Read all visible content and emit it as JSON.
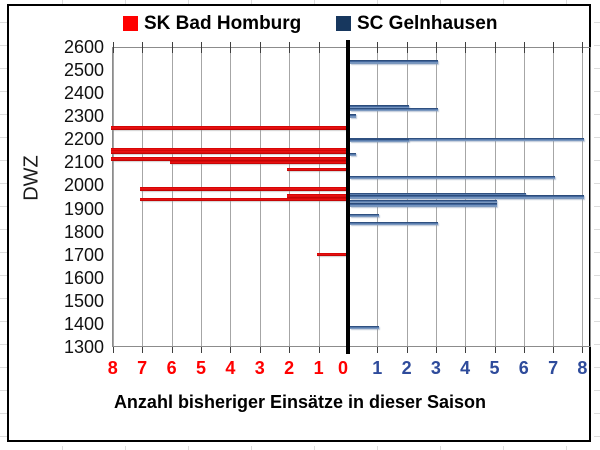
{
  "chart_data": {
    "type": "bar",
    "variant": "diverging-horizontal",
    "title": "",
    "xlabel": "Anzahl bisheriger Einsätze in dieser Saison",
    "ylabel": "DWZ",
    "grid": true,
    "legend_position": "top",
    "ylim": [
      1300,
      2600
    ],
    "xlim_abs": [
      0,
      8
    ],
    "y_ticks": [
      2600,
      2500,
      2400,
      2300,
      2200,
      2100,
      2000,
      1900,
      1800,
      1700,
      1600,
      1500,
      1400,
      1300
    ],
    "x_ticks_left": [
      "8",
      "7",
      "6",
      "5",
      "4",
      "3",
      "2",
      "1",
      "0"
    ],
    "x_ticks_right": [
      "1",
      "2",
      "3",
      "4",
      "5",
      "6",
      "7",
      "8"
    ],
    "series": [
      {
        "name": "SK Bad Homburg",
        "side": "left",
        "color": "#FF0000",
        "tick_color": "#FF0000",
        "points": [
          {
            "dwz": 2250,
            "einsaetze": 8
          },
          {
            "dwz": 2155,
            "einsaetze": 8
          },
          {
            "dwz": 2145,
            "einsaetze": 8
          },
          {
            "dwz": 2115,
            "einsaetze": 8
          },
          {
            "dwz": 2100,
            "einsaetze": 6
          },
          {
            "dwz": 2070,
            "einsaetze": 2
          },
          {
            "dwz": 1985,
            "einsaetze": 7
          },
          {
            "dwz": 1955,
            "einsaetze": 2
          },
          {
            "dwz": 1940,
            "einsaetze": 7
          },
          {
            "dwz": 1700,
            "einsaetze": 1
          }
        ]
      },
      {
        "name": "SC Gelnhausen",
        "side": "right",
        "color": "#17375E",
        "tick_color": "#2E4B9B",
        "points": [
          {
            "dwz": 2535,
            "einsaetze": 3
          },
          {
            "dwz": 2340,
            "einsaetze": 2
          },
          {
            "dwz": 2330,
            "einsaetze": 3
          },
          {
            "dwz": 2300,
            "einsaetze": 0
          },
          {
            "dwz": 2200,
            "einsaetze": 8
          },
          {
            "dwz": 2195,
            "einsaetze": 2
          },
          {
            "dwz": 2135,
            "einsaetze": 0
          },
          {
            "dwz": 2035,
            "einsaetze": 7
          },
          {
            "dwz": 1960,
            "einsaetze": 6
          },
          {
            "dwz": 1950,
            "einsaetze": 8
          },
          {
            "dwz": 1930,
            "einsaetze": 5
          },
          {
            "dwz": 1915,
            "einsaetze": 5
          },
          {
            "dwz": 1870,
            "einsaetze": 1
          },
          {
            "dwz": 1835,
            "einsaetze": 3
          },
          {
            "dwz": 1385,
            "einsaetze": 1
          }
        ]
      }
    ]
  }
}
